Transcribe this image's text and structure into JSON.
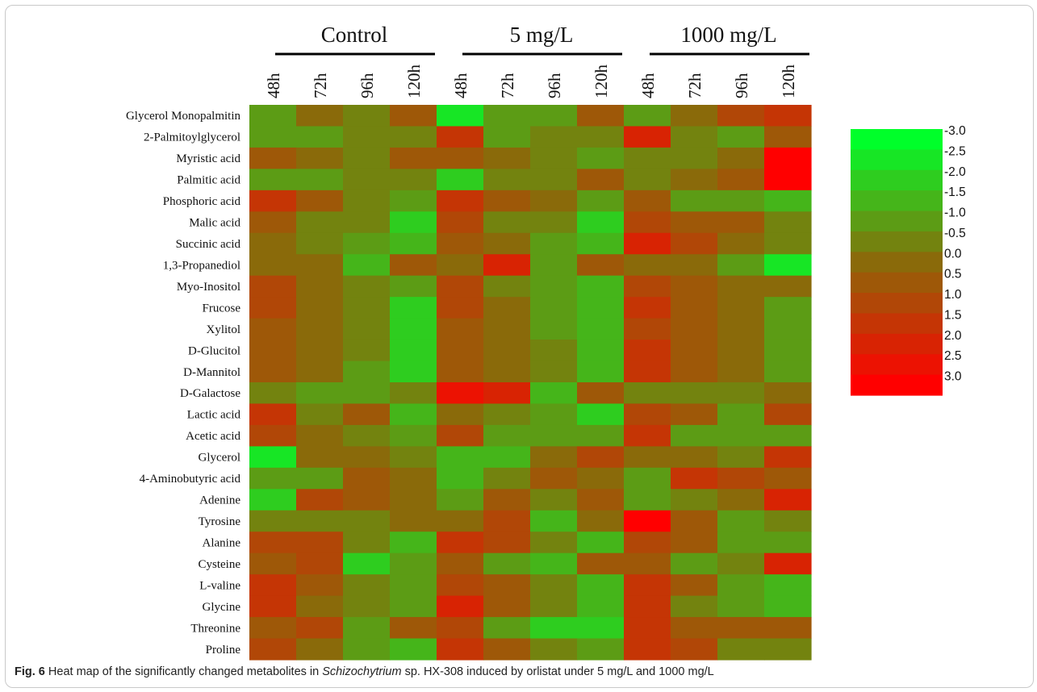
{
  "chart_data": {
    "type": "heatmap",
    "groups": [
      {
        "label": "Control",
        "columns": [
          "48h",
          "72h",
          "96h",
          "120h"
        ]
      },
      {
        "label": "5 mg/L",
        "columns": [
          "48h",
          "72h",
          "96h",
          "120h"
        ]
      },
      {
        "label": "1000 mg/L",
        "columns": [
          "48h",
          "72h",
          "96h",
          "120h"
        ]
      }
    ],
    "rows": [
      "Glycerol Monopalmitin",
      "2-Palmitoylglycerol",
      "Myristic acid",
      "Palmitic acid",
      "Phosphoric acid",
      "Malic acid",
      "Succinic acid",
      "1,3-Propanediol",
      "Myo-Inositol",
      "Frucose",
      "Xylitol",
      "D-Glucitol",
      "D-Mannitol",
      "D-Galactose",
      "Lactic acid",
      "Acetic acid",
      "Glycerol",
      "4-Aminobutyric acid",
      "Adenine",
      "Tyrosine",
      "Alanine",
      "Cysteine",
      "L-valine",
      "Glycine",
      "Threonine",
      "Proline"
    ],
    "values": [
      [
        -1.0,
        0.0,
        -0.5,
        0.5,
        -2.5,
        -1.0,
        -1.0,
        0.5,
        -1.0,
        0.0,
        1.0,
        1.5
      ],
      [
        -1.0,
        -1.0,
        -0.5,
        -0.5,
        1.5,
        -1.0,
        -0.5,
        -0.5,
        2.0,
        -0.5,
        -1.0,
        0.5
      ],
      [
        0.5,
        0.0,
        -0.5,
        0.5,
        0.5,
        0.0,
        -0.5,
        -1.0,
        -0.5,
        -0.5,
        0.0,
        3.0
      ],
      [
        -1.0,
        -1.0,
        -0.5,
        -0.5,
        -2.0,
        -0.5,
        -0.5,
        0.5,
        -0.5,
        0.0,
        0.5,
        3.0
      ],
      [
        1.5,
        0.5,
        -0.5,
        -1.0,
        1.5,
        0.5,
        0.0,
        -1.0,
        0.5,
        -1.0,
        -1.0,
        -1.5
      ],
      [
        0.5,
        -0.5,
        -0.5,
        -2.0,
        1.0,
        -0.5,
        -0.5,
        -2.0,
        1.0,
        0.5,
        0.5,
        -0.5
      ],
      [
        0.0,
        -0.5,
        -1.0,
        -1.5,
        0.5,
        0.0,
        -1.0,
        -1.5,
        2.0,
        1.0,
        0.0,
        -0.5
      ],
      [
        0.0,
        0.0,
        -1.5,
        0.5,
        0.0,
        2.0,
        -1.0,
        0.5,
        0.0,
        0.0,
        -1.0,
        -2.5
      ],
      [
        1.0,
        0.0,
        -0.5,
        -1.0,
        1.0,
        -0.5,
        -1.0,
        -1.5,
        1.0,
        0.5,
        0.0,
        0.0
      ],
      [
        1.0,
        0.0,
        -0.5,
        -2.0,
        1.0,
        0.0,
        -1.0,
        -1.5,
        1.5,
        0.5,
        0.0,
        -1.0
      ],
      [
        0.5,
        0.0,
        -0.5,
        -2.0,
        0.5,
        0.0,
        -1.0,
        -1.5,
        1.0,
        0.5,
        0.0,
        -1.0
      ],
      [
        0.5,
        0.0,
        -0.5,
        -2.0,
        0.5,
        0.0,
        -0.5,
        -1.5,
        1.5,
        0.5,
        0.0,
        -1.0
      ],
      [
        0.5,
        0.0,
        -1.0,
        -2.0,
        0.5,
        0.0,
        -0.5,
        -1.5,
        1.5,
        0.5,
        0.0,
        -1.0
      ],
      [
        -0.5,
        -1.0,
        -1.0,
        -0.5,
        2.5,
        2.0,
        -1.5,
        0.5,
        -0.5,
        -0.5,
        -0.5,
        0.0
      ],
      [
        1.5,
        -0.5,
        0.5,
        -1.5,
        0.0,
        -0.5,
        -1.0,
        -2.0,
        1.0,
        0.5,
        -1.0,
        1.0
      ],
      [
        1.0,
        0.0,
        -0.5,
        -1.0,
        1.0,
        -1.0,
        -1.0,
        -1.0,
        1.5,
        -1.0,
        -1.0,
        -1.0
      ],
      [
        -2.5,
        0.0,
        0.0,
        -0.5,
        -1.5,
        -1.5,
        0.0,
        1.0,
        0.0,
        0.0,
        -0.5,
        1.5
      ],
      [
        -1.0,
        -1.0,
        0.5,
        0.0,
        -1.5,
        -0.5,
        0.5,
        0.0,
        -1.0,
        1.5,
        1.0,
        0.5
      ],
      [
        -2.0,
        1.0,
        0.5,
        0.0,
        -1.0,
        0.5,
        -0.5,
        0.5,
        -1.0,
        -0.5,
        0.0,
        2.0
      ],
      [
        -0.5,
        -0.5,
        -0.5,
        0.0,
        0.0,
        1.0,
        -1.5,
        0.0,
        3.0,
        0.5,
        -1.0,
        -0.5
      ],
      [
        1.0,
        1.0,
        -0.5,
        -1.5,
        1.5,
        1.0,
        -0.5,
        -1.5,
        1.0,
        0.5,
        -1.0,
        -1.0
      ],
      [
        0.5,
        1.0,
        -2.0,
        -1.0,
        0.5,
        -1.0,
        -1.5,
        0.5,
        0.5,
        -1.0,
        -0.5,
        2.0
      ],
      [
        1.5,
        0.5,
        -0.5,
        -1.0,
        1.0,
        0.5,
        -0.5,
        -1.5,
        1.5,
        0.5,
        -1.0,
        -1.5
      ],
      [
        1.5,
        0.0,
        -0.5,
        -1.0,
        2.0,
        0.5,
        -0.5,
        -1.5,
        1.5,
        -0.5,
        -1.0,
        -1.5
      ],
      [
        0.5,
        1.0,
        -1.0,
        0.5,
        1.0,
        -1.0,
        -2.0,
        -2.0,
        1.5,
        0.5,
        0.5,
        0.5
      ],
      [
        1.0,
        0.0,
        -1.0,
        -1.5,
        1.5,
        0.5,
        -0.5,
        -1.0,
        1.5,
        1.0,
        -0.5,
        -0.5
      ]
    ],
    "colorbar": {
      "ticks": [
        "-3.0",
        "-2.5",
        "-2.0",
        "-1.5",
        "-1.0",
        "-0.5",
        "0.0",
        "0.5",
        "1.0",
        "1.5",
        "2.0",
        "2.5",
        "3.0"
      ],
      "low_color": "#00ff2a",
      "mid_color": "#8a6a0a",
      "high_color": "#ff0000",
      "range": [
        -3.0,
        3.0
      ]
    }
  },
  "caption": {
    "label": "Fig. 6",
    "text_before": "Heat map of the significantly changed metabolites in ",
    "species": "Schizochytrium",
    "text_after": " sp. HX-308 induced by orlistat under 5 mg/L and 1000 mg/L"
  }
}
